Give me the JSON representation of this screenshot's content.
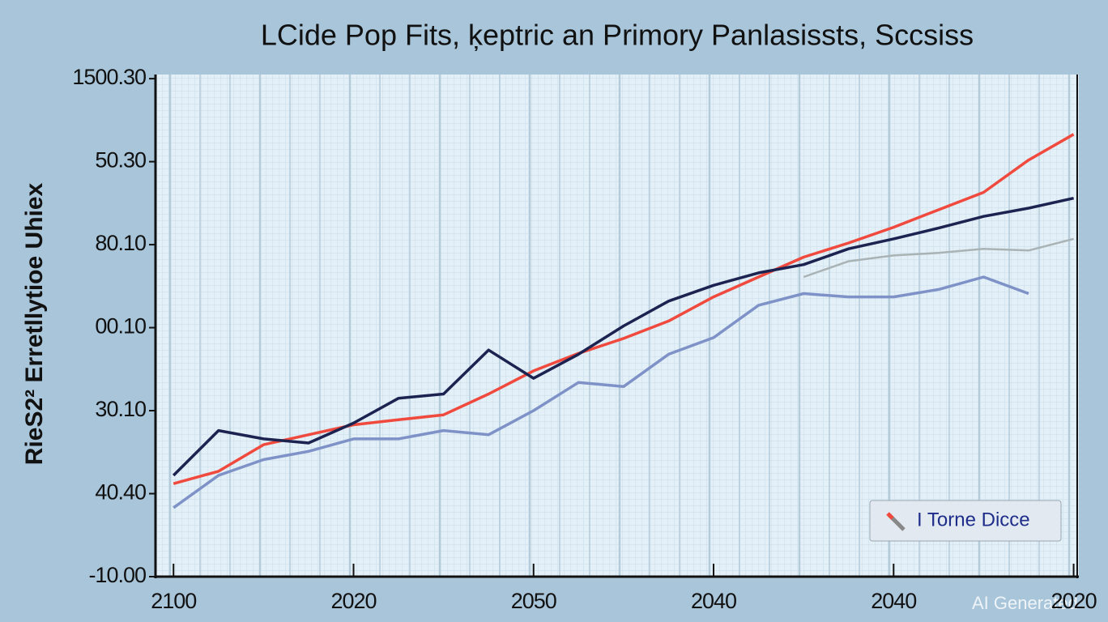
{
  "chart_data": {
    "type": "line",
    "title": "LCide Pop Fits, ķeptric an Primory Panlasissts, Sccsiss",
    "y_label": "RieS2² Erretllytioe Uhiex",
    "watermark": "AI Generated",
    "y_labels": [
      "-10.00",
      "40.40",
      "30.10",
      "00.10",
      "80.10",
      "50.30",
      "1500.30"
    ],
    "x_labels": [
      "2100",
      "2020",
      "2050",
      "2040",
      "2040",
      "2020"
    ],
    "x": [
      0,
      0.25,
      0.5,
      0.75,
      1,
      1.25,
      1.5,
      1.75,
      2,
      2.25,
      2.5,
      2.75,
      3,
      3.25,
      3.5,
      3.75,
      4,
      4.25,
      4.5,
      4.75,
      5
    ],
    "xlim": [
      -0.1,
      5.02
    ],
    "ylim": [
      0,
      6.05
    ],
    "series": [
      {
        "name": "I Torne Dicce",
        "color": "#f0493e",
        "values": [
          1.12,
          1.27,
          1.59,
          1.71,
          1.83,
          1.89,
          1.95,
          2.2,
          2.48,
          2.69,
          2.87,
          3.08,
          3.37,
          3.61,
          3.85,
          4.02,
          4.21,
          4.42,
          4.63,
          5.02,
          5.33
        ]
      },
      {
        "color": "#1c2350",
        "values": [
          1.22,
          1.76,
          1.66,
          1.61,
          1.85,
          2.15,
          2.2,
          2.73,
          2.39,
          2.68,
          3.02,
          3.32,
          3.51,
          3.66,
          3.76,
          3.95,
          4.07,
          4.2,
          4.34,
          4.44,
          4.56
        ]
      },
      {
        "color": "#7e92c8",
        "values": [
          0.83,
          1.22,
          1.41,
          1.51,
          1.66,
          1.66,
          1.76,
          1.71,
          2.0,
          2.34,
          2.29,
          2.68,
          2.88,
          3.27,
          3.41,
          3.37,
          3.37,
          3.46,
          3.61,
          3.41,
          null
        ]
      },
      {
        "color": "#a9b3b5",
        "values": [
          null,
          null,
          null,
          null,
          null,
          null,
          null,
          null,
          null,
          null,
          null,
          null,
          null,
          null,
          3.61,
          3.8,
          3.87,
          3.9,
          3.95,
          3.93,
          4.07
        ]
      }
    ],
    "legend": "lower right"
  }
}
